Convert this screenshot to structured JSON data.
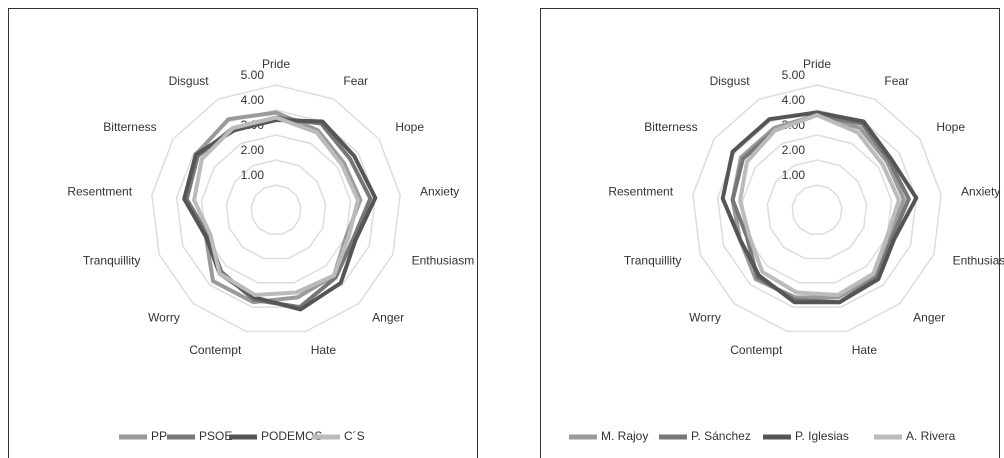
{
  "chart_data": [
    {
      "type": "radar",
      "categories": [
        "Pride",
        "Fear",
        "Hope",
        "Anxiety",
        "Enthusiasm",
        "Anger",
        "Hate",
        "Contempt",
        "Worry",
        "Tranquillity",
        "Resentment",
        "Bitterness",
        "Disgust"
      ],
      "ylim": [
        0,
        5
      ],
      "yticks": [
        {
          "value": 1,
          "label": "1.00"
        },
        {
          "value": 2,
          "label": "2.00"
        },
        {
          "value": 3,
          "label": "3.00"
        },
        {
          "value": 4,
          "label": "4.00"
        },
        {
          "value": 5,
          "label": "5.00"
        }
      ],
      "series": [
        {
          "name": "PP",
          "color": "#9a9a9a",
          "values": [
            3.9,
            3.6,
            3.3,
            3.4,
            3.0,
            3.5,
            3.6,
            3.8,
            3.8,
            3.0,
            3.6,
            3.9,
            4.1
          ]
        },
        {
          "name": "PSOE",
          "color": "#777777",
          "values": [
            3.7,
            3.9,
            3.6,
            3.8,
            3.3,
            3.6,
            4.0,
            3.7,
            3.3,
            2.9,
            3.6,
            3.8,
            3.7
          ]
        },
        {
          "name": "PODEMOS",
          "color": "#555555",
          "values": [
            3.6,
            4.0,
            3.8,
            4.0,
            3.4,
            3.9,
            4.1,
            3.6,
            3.4,
            3.0,
            3.7,
            3.9,
            3.6
          ]
        },
        {
          "name": "C´S",
          "color": "#bbbbbb",
          "values": [
            3.7,
            3.5,
            3.2,
            3.3,
            3.1,
            3.5,
            3.4,
            3.5,
            3.4,
            2.8,
            3.3,
            3.6,
            3.7
          ]
        }
      ]
    },
    {
      "type": "radar",
      "categories": [
        "Pride",
        "Fear",
        "Hope",
        "Anxiety",
        "Enthusiasm",
        "Anger",
        "Hate",
        "Contempt",
        "Worry",
        "Tranquillity",
        "Resentment",
        "Bitterness",
        "Disgust"
      ],
      "ylim": [
        0,
        5
      ],
      "yticks": [
        {
          "value": 1,
          "label": "1.00"
        },
        {
          "value": 2,
          "label": "2.00"
        },
        {
          "value": 3,
          "label": "3.00"
        },
        {
          "value": 4,
          "label": "4.00"
        },
        {
          "value": 5,
          "label": "5.00"
        }
      ],
      "series": [
        {
          "name": "M. Rajoy",
          "color": "#9a9a9a",
          "values": [
            3.8,
            3.7,
            3.4,
            3.5,
            3.1,
            3.5,
            3.6,
            3.6,
            3.7,
            3.3,
            3.4,
            3.7,
            3.7
          ]
        },
        {
          "name": "P. Sánchez",
          "color": "#777777",
          "values": [
            3.8,
            3.9,
            3.5,
            3.7,
            3.2,
            3.6,
            3.8,
            3.7,
            3.6,
            3.0,
            3.4,
            3.6,
            3.6
          ]
        },
        {
          "name": "P. Iglesias",
          "color": "#555555",
          "values": [
            3.9,
            4.0,
            3.6,
            4.0,
            3.3,
            3.7,
            3.8,
            3.8,
            3.5,
            3.3,
            3.8,
            4.1,
            4.1
          ]
        },
        {
          "name": "A. Rivera",
          "color": "#bbbbbb",
          "values": [
            3.8,
            3.5,
            3.2,
            3.3,
            3.0,
            3.4,
            3.5,
            3.4,
            3.3,
            2.9,
            3.1,
            3.4,
            3.6
          ]
        }
      ]
    }
  ]
}
